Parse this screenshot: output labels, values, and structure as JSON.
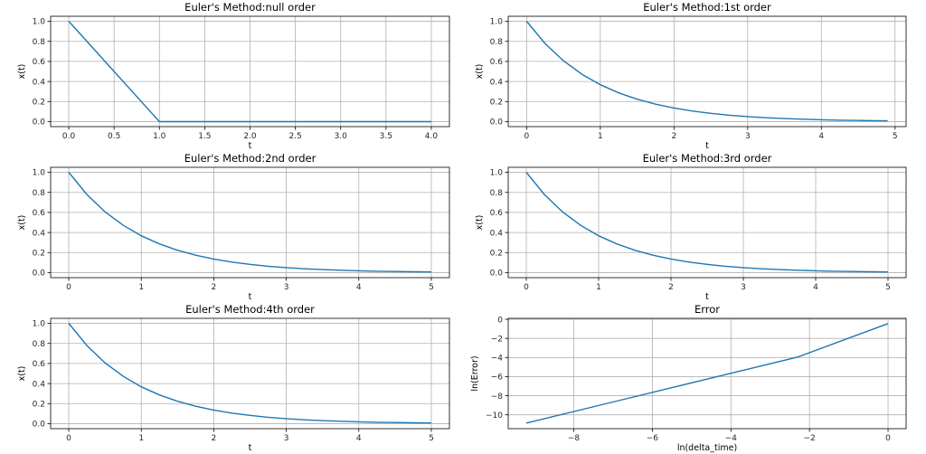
{
  "chart_data": [
    {
      "type": "line",
      "title": "Euler's Method:null order",
      "xlabel": "t",
      "ylabel": "x(t)",
      "xlim": [
        -0.2,
        4.2
      ],
      "ylim": [
        -0.05,
        1.05
      ],
      "xticks": [
        0.0,
        0.5,
        1.0,
        1.5,
        2.0,
        2.5,
        3.0,
        3.5,
        4.0
      ],
      "xtick_labels": [
        "0.0",
        "0.5",
        "1.0",
        "1.5",
        "2.0",
        "2.5",
        "3.0",
        "3.5",
        "4.0"
      ],
      "yticks": [
        0.0,
        0.2,
        0.4,
        0.6,
        0.8,
        1.0
      ],
      "ytick_labels": [
        "0.0",
        "0.2",
        "0.4",
        "0.6",
        "0.8",
        "1.0"
      ],
      "grid": true,
      "x": [
        0,
        1,
        4
      ],
      "y": [
        1,
        0,
        0
      ]
    },
    {
      "type": "line",
      "title": "Euler's Method:1st order",
      "xlabel": "t",
      "ylabel": "x(t)",
      "xlim": [
        -0.25,
        5.15
      ],
      "ylim": [
        -0.05,
        1.05
      ],
      "xticks": [
        0,
        1,
        2,
        3,
        4,
        5
      ],
      "xtick_labels": [
        "0",
        "1",
        "2",
        "3",
        "4",
        "5"
      ],
      "yticks": [
        0.0,
        0.2,
        0.4,
        0.6,
        0.8,
        1.0
      ],
      "ytick_labels": [
        "0.0",
        "0.2",
        "0.4",
        "0.6",
        "0.8",
        "1.0"
      ],
      "grid": true,
      "x": [
        0,
        0.25,
        0.5,
        0.75,
        1,
        1.25,
        1.5,
        1.75,
        2,
        2.25,
        2.5,
        2.75,
        3,
        3.25,
        3.5,
        3.75,
        4,
        4.25,
        4.5,
        4.75,
        4.9
      ],
      "y": [
        1,
        0.7788,
        0.6065,
        0.4724,
        0.3679,
        0.2865,
        0.2231,
        0.1738,
        0.1353,
        0.1054,
        0.0821,
        0.0639,
        0.0498,
        0.0388,
        0.0302,
        0.0235,
        0.0183,
        0.0143,
        0.0111,
        0.0087,
        0.0074
      ]
    },
    {
      "type": "line",
      "title": "Euler's Method:2nd order",
      "xlabel": "t",
      "ylabel": "x(t)",
      "xlim": [
        -0.25,
        5.25
      ],
      "ylim": [
        -0.05,
        1.05
      ],
      "xticks": [
        0,
        1,
        2,
        3,
        4,
        5
      ],
      "xtick_labels": [
        "0",
        "1",
        "2",
        "3",
        "4",
        "5"
      ],
      "yticks": [
        0.0,
        0.2,
        0.4,
        0.6,
        0.8,
        1.0
      ],
      "ytick_labels": [
        "0.0",
        "0.2",
        "0.4",
        "0.6",
        "0.8",
        "1.0"
      ],
      "grid": true,
      "x": [
        0,
        0.25,
        0.5,
        0.75,
        1,
        1.25,
        1.5,
        1.75,
        2,
        2.25,
        2.5,
        2.75,
        3,
        3.25,
        3.5,
        3.75,
        4,
        4.25,
        4.5,
        4.75,
        5
      ],
      "y": [
        1,
        0.7788,
        0.6065,
        0.4724,
        0.3679,
        0.2865,
        0.2231,
        0.1738,
        0.1353,
        0.1054,
        0.0821,
        0.0639,
        0.0498,
        0.0388,
        0.0302,
        0.0235,
        0.0183,
        0.0143,
        0.0111,
        0.0087,
        0.0067
      ]
    },
    {
      "type": "line",
      "title": "Euler's Method:3rd order",
      "xlabel": "t",
      "ylabel": "x(t)",
      "xlim": [
        -0.25,
        5.25
      ],
      "ylim": [
        -0.05,
        1.05
      ],
      "xticks": [
        0,
        1,
        2,
        3,
        4,
        5
      ],
      "xtick_labels": [
        "0",
        "1",
        "2",
        "3",
        "4",
        "5"
      ],
      "yticks": [
        0.0,
        0.2,
        0.4,
        0.6,
        0.8,
        1.0
      ],
      "ytick_labels": [
        "0.0",
        "0.2",
        "0.4",
        "0.6",
        "0.8",
        "1.0"
      ],
      "grid": true,
      "x": [
        0,
        0.25,
        0.5,
        0.75,
        1,
        1.25,
        1.5,
        1.75,
        2,
        2.25,
        2.5,
        2.75,
        3,
        3.25,
        3.5,
        3.75,
        4,
        4.25,
        4.5,
        4.75,
        5
      ],
      "y": [
        1,
        0.7788,
        0.6065,
        0.4724,
        0.3679,
        0.2865,
        0.2231,
        0.1738,
        0.1353,
        0.1054,
        0.0821,
        0.0639,
        0.0498,
        0.0388,
        0.0302,
        0.0235,
        0.0183,
        0.0143,
        0.0111,
        0.0087,
        0.0067
      ]
    },
    {
      "type": "line",
      "title": "Euler's Method:4th order",
      "xlabel": "t",
      "ylabel": "x(t)",
      "xlim": [
        -0.25,
        5.25
      ],
      "ylim": [
        -0.05,
        1.05
      ],
      "xticks": [
        0,
        1,
        2,
        3,
        4,
        5
      ],
      "xtick_labels": [
        "0",
        "1",
        "2",
        "3",
        "4",
        "5"
      ],
      "yticks": [
        0.0,
        0.2,
        0.4,
        0.6,
        0.8,
        1.0
      ],
      "ytick_labels": [
        "0.0",
        "0.2",
        "0.4",
        "0.6",
        "0.8",
        "1.0"
      ],
      "grid": true,
      "x": [
        0,
        0.25,
        0.5,
        0.75,
        1,
        1.25,
        1.5,
        1.75,
        2,
        2.25,
        2.5,
        2.75,
        3,
        3.25,
        3.5,
        3.75,
        4,
        4.25,
        4.5,
        4.75,
        5
      ],
      "y": [
        1,
        0.7788,
        0.6065,
        0.4724,
        0.3679,
        0.2865,
        0.2231,
        0.1738,
        0.1353,
        0.1054,
        0.0821,
        0.0639,
        0.0498,
        0.0388,
        0.0302,
        0.0235,
        0.0183,
        0.0143,
        0.0111,
        0.0087,
        0.0067
      ]
    },
    {
      "type": "line",
      "title": "Error",
      "xlabel": "ln(delta_time)",
      "ylabel": "ln(Error)",
      "xlim": [
        -9.67,
        0.46
      ],
      "ylim": [
        -11.45,
        0.1
      ],
      "xticks": [
        -8,
        -6,
        -4,
        -2,
        0
      ],
      "xtick_labels": [
        "−8",
        "−6",
        "−4",
        "−2",
        "0"
      ],
      "yticks": [
        -10,
        -8,
        -6,
        -4,
        -2,
        0
      ],
      "ytick_labels": [
        "−10",
        "−8",
        "−6",
        "−4",
        "−2",
        "0"
      ],
      "grid": true,
      "x": [
        -9.21,
        -6.91,
        -4.61,
        -2.3,
        0
      ],
      "y": [
        -10.86,
        -8.56,
        -6.26,
        -3.95,
        -0.45
      ]
    }
  ],
  "colors": {
    "line": "#1f77b4",
    "grid": "#b0b0b0",
    "axes": "#000000"
  }
}
